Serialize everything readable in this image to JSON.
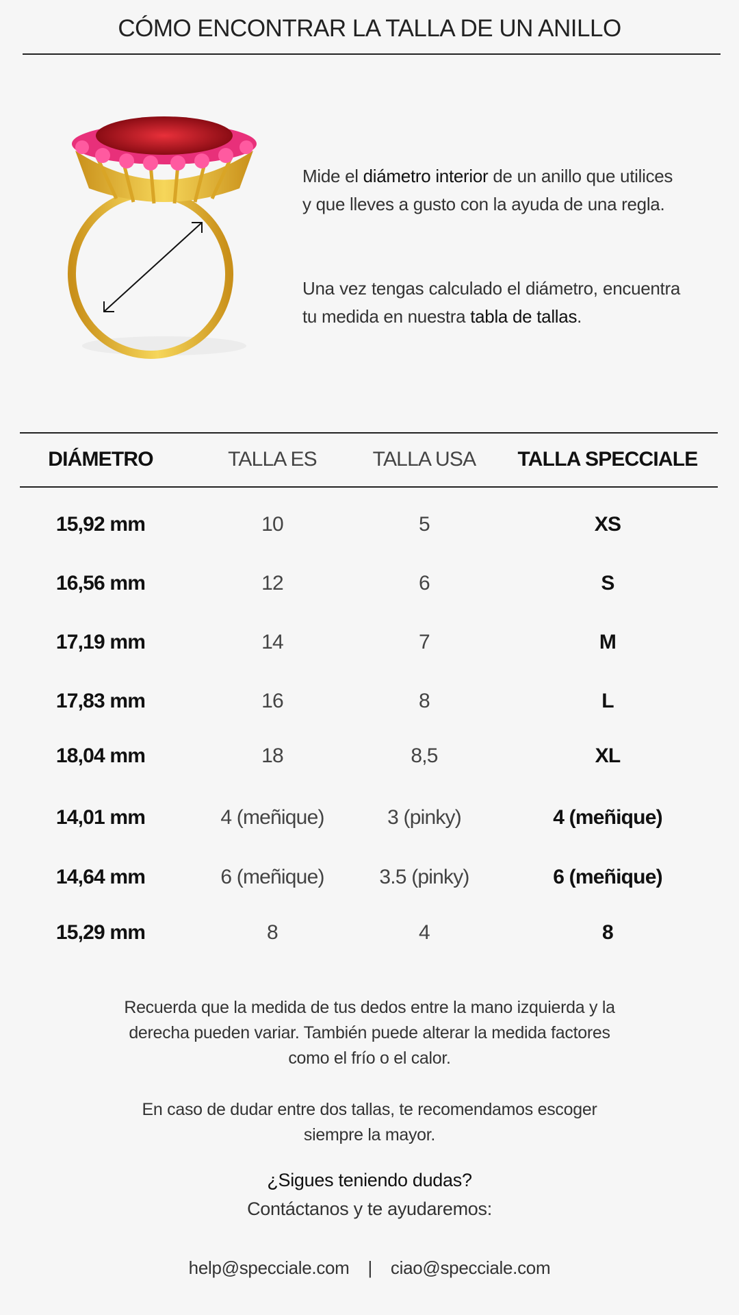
{
  "header": {
    "title": "CÓMO ENCONTRAR LA TALLA DE UN ANILLO"
  },
  "intro": {
    "p1": [
      {
        "text": "Mide el ",
        "bold": false
      },
      {
        "text": "diámetro interior",
        "bold": true
      },
      {
        "text": " de un anillo que utilices y que lleves a gusto con la ayuda de una regla.",
        "bold": false
      }
    ],
    "p2": [
      {
        "text": "Una vez tengas calculado el diámetro, encuentra tu medida en nuestra ",
        "bold": false
      },
      {
        "text": "tabla de tallas",
        "bold": true
      },
      {
        "text": ".",
        "bold": false
      }
    ]
  },
  "colors": {
    "gold": "#e0b52a",
    "ruby": "#b0141e",
    "pink": "#e8307a",
    "background": "#f6f6f6"
  },
  "table": {
    "headers": [
      "DIÁMETRO",
      "TALLA ES",
      "TALLA USA",
      "TALLA SPECCIALE"
    ],
    "rows": [
      [
        "15,92 mm",
        "10",
        "5",
        "XS"
      ],
      [
        "16,56 mm",
        "12",
        "6",
        "S"
      ],
      [
        "17,19 mm",
        "14",
        "7",
        "M"
      ],
      [
        "17,83 mm",
        "16",
        "8",
        "L"
      ],
      [
        "18,04 mm",
        "18",
        "8,5",
        "XL"
      ],
      [
        "14,01 mm",
        "4 (meñique)",
        "3 (pinky)",
        "4 (meñique)"
      ],
      [
        "14,64 mm",
        "6 (meñique)",
        "3.5 (pinky)",
        "6 (meñique)"
      ],
      [
        "15,29 mm",
        "8",
        "4",
        "8"
      ]
    ]
  },
  "footer": {
    "note1_lines": [
      "Recuerda que la medida de tus dedos entre la mano izquierda y la",
      "derecha pueden variar. También puede alterar la medida factores",
      "como el frío o el calor."
    ],
    "note2_lines": [
      "En caso de dudar entre dos tallas, te recomendamos escoger",
      "siempre la mayor."
    ],
    "question": "¿Sigues teniendo dudas?",
    "contact": "Contáctanos y te ayudaremos:",
    "email1": "help@specciale.com",
    "separator": "|",
    "email2": "ciao@specciale.com"
  }
}
